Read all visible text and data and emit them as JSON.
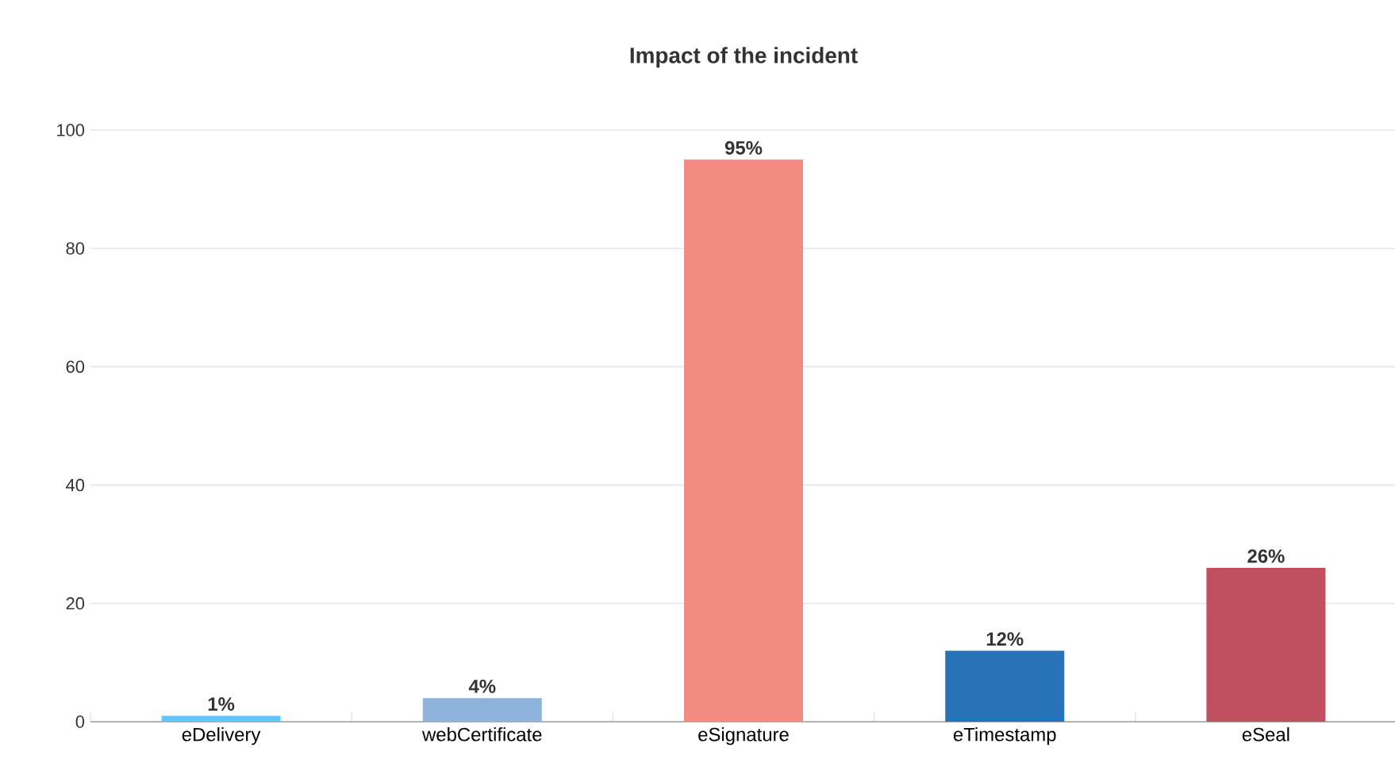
{
  "chart_data": {
    "type": "bar",
    "title": "Impact of the incident",
    "categories": [
      "eDelivery",
      "webCertificate",
      "eSignature",
      "eTimestamp",
      "eSeal"
    ],
    "values": [
      1,
      4,
      95,
      12,
      26
    ],
    "colors": [
      "#5bc8f5",
      "#8fb3db",
      "#f28b82",
      "#2872b8",
      "#c0505f"
    ],
    "value_labels": [
      "1%",
      "4%",
      "95%",
      "12%",
      "26%"
    ],
    "ylim": [
      0,
      100
    ],
    "yticks": [
      0,
      20,
      40,
      60,
      80,
      100
    ],
    "grid": "y"
  }
}
